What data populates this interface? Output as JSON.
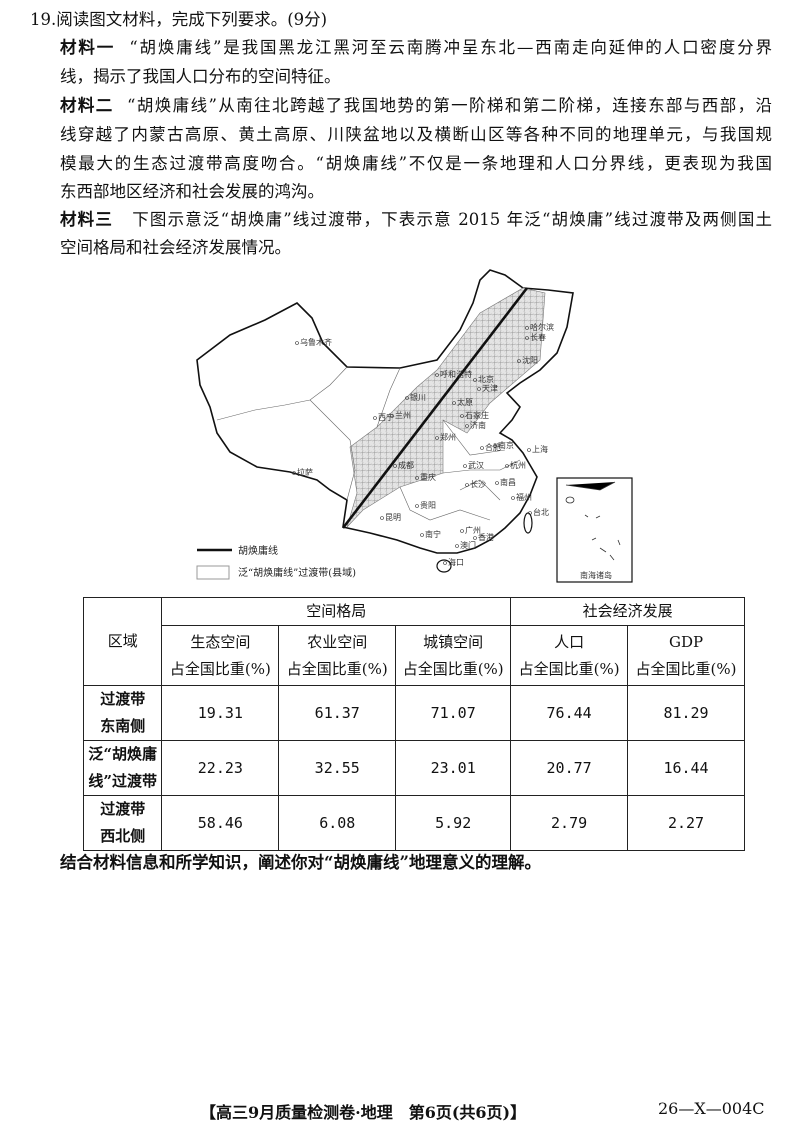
{
  "question": {
    "number": "19.",
    "prompt": "阅读图文材料，完成下列要求。(9分)",
    "materials": [
      {
        "label": "材料一",
        "lines": [
          "“胡焕庸线”是我国黑龙江黑河至云南腾冲呈东北—西南走向延伸的人口密度分界",
          "线，揭示了我国人口分布的空间特征。"
        ]
      },
      {
        "label": "材料二",
        "lines": [
          "“胡焕庸线”从南往北跨越了我国地势的第一阶梯和第二阶梯，连接东部与西部，沿",
          "线穿越了内蒙古高原、黄土高原、川陕盆地以及横断山区等各种不同的地理单元，与我国规",
          "模最大的生态过渡带高度吻合。“胡焕庸线”不仅是一条地理和人口分界线，更表现为我国",
          "东西部地区经济和社会发展的鸿沟。"
        ]
      },
      {
        "label": "材料三",
        "lines": [
          "下图示意泛“胡焕庸”线过渡带，下表示意 2015 年泛“胡焕庸”线过渡带及两侧国土",
          "空间格局和社会经济发展情况。"
        ]
      }
    ],
    "task": "结合材料信息和所学知识，阐述你对“胡焕庸线”地理意义的理解。"
  },
  "map": {
    "cities": [
      "乌鲁木齐",
      "拉萨",
      "哈尔滨",
      "长春",
      "沈阳",
      "呼和浩特",
      "北京",
      "天津",
      "银川",
      "太原",
      "石家庄",
      "济南",
      "西宁",
      "兰州",
      "郑州",
      "合肥",
      "南京",
      "上海",
      "杭州",
      "武汉",
      "成都",
      "重庆",
      "长沙",
      "南昌",
      "贵阳",
      "昆明",
      "福州",
      "台北",
      "南宁",
      "广州",
      "香港",
      "澳门",
      "海口"
    ],
    "inset_label": "南海诸岛",
    "legend": {
      "line": "胡焕庸线",
      "band": "泛“胡焕庸线”过渡带(县域)"
    }
  },
  "table": {
    "region_header": "区域",
    "group_headers": [
      "空间格局",
      "社会经济发展"
    ],
    "columns": [
      {
        "name": "生态空间",
        "unit": "占全国比重(%)"
      },
      {
        "name": "农业空间",
        "unit": "占全国比重(%)"
      },
      {
        "name": "城镇空间",
        "unit": "占全国比重(%)"
      },
      {
        "name": "人口",
        "unit": "占全国比重(%)"
      },
      {
        "name": "GDP",
        "unit": "占全国比重(%)"
      }
    ],
    "rows": [
      {
        "region": [
          "过渡带",
          "东南侧"
        ],
        "values": [
          "19.31",
          "61.37",
          "71.07",
          "76.44",
          "81.29"
        ]
      },
      {
        "region": [
          "泛“胡焕庸",
          "线”过渡带"
        ],
        "values": [
          "22.23",
          "32.55",
          "23.01",
          "20.77",
          "16.44"
        ]
      },
      {
        "region": [
          "过渡带",
          "西北侧"
        ],
        "values": [
          "58.46",
          "6.08",
          "5.92",
          "2.79",
          "2.27"
        ]
      }
    ]
  },
  "footer": {
    "title": "【高三9月质量检测卷·地理　第6页(共6页)】",
    "code": "26—X—004C"
  }
}
